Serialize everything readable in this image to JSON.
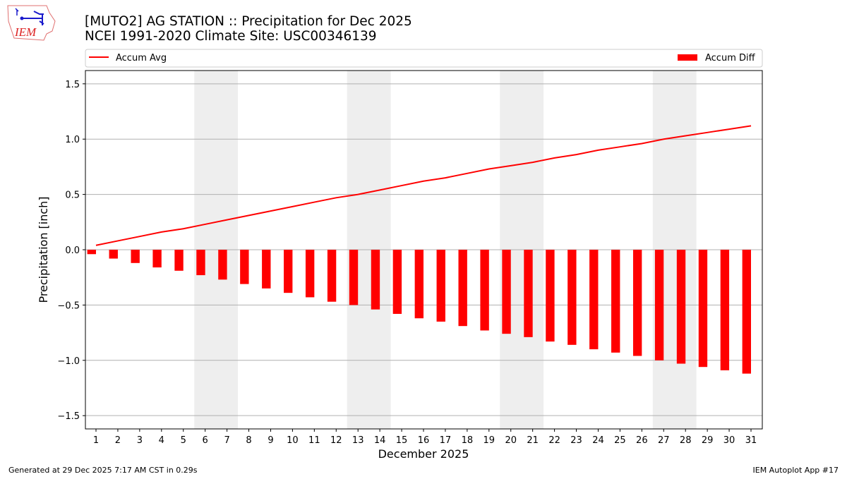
{
  "title_line1": "[MUTO2] AG STATION :: Precipitation for Dec 2025",
  "title_line2": "NCEI 1991-2020 Climate Site: USC00346139",
  "logo_text": "IEM",
  "footer_left": "Generated at 29 Dec 2025 7:17 AM CST in 0.29s",
  "footer_right": "IEM Autoplot App #17",
  "chart_data": {
    "type": "bar+line",
    "xlabel": "December 2025",
    "ylabel": "Precipitation [inch]",
    "ylim": [
      -1.62,
      1.62
    ],
    "yticks": [
      "1.5",
      "1.0",
      "0.5",
      "0.0",
      "−0.5",
      "−1.0",
      "−1.5"
    ],
    "ytick_values": [
      1.5,
      1.0,
      0.5,
      0.0,
      -0.5,
      -1.0,
      -1.5
    ],
    "grid": "horizontal",
    "legend_placement": "top (above plot)",
    "weekend_shading_days": [
      [
        6,
        7
      ],
      [
        13,
        14
      ],
      [
        20,
        21
      ],
      [
        27,
        28
      ]
    ],
    "x": [
      1,
      2,
      3,
      4,
      5,
      6,
      7,
      8,
      9,
      10,
      11,
      12,
      13,
      14,
      15,
      16,
      17,
      18,
      19,
      20,
      21,
      22,
      23,
      24,
      25,
      26,
      27,
      28,
      29,
      30,
      31
    ],
    "series": [
      {
        "name": "Accum Avg",
        "type": "line",
        "color": "#ff0000",
        "values": [
          0.04,
          0.08,
          0.12,
          0.16,
          0.19,
          0.23,
          0.27,
          0.31,
          0.35,
          0.39,
          0.43,
          0.47,
          0.5,
          0.54,
          0.58,
          0.62,
          0.65,
          0.69,
          0.73,
          0.76,
          0.79,
          0.83,
          0.86,
          0.9,
          0.93,
          0.96,
          1.0,
          1.03,
          1.06,
          1.09,
          1.12
        ]
      },
      {
        "name": "Accum Diff",
        "type": "bar",
        "color": "#ff0000",
        "values": [
          -0.04,
          -0.08,
          -0.12,
          -0.16,
          -0.19,
          -0.23,
          -0.27,
          -0.31,
          -0.35,
          -0.39,
          -0.43,
          -0.47,
          -0.5,
          -0.54,
          -0.58,
          -0.62,
          -0.65,
          -0.69,
          -0.73,
          -0.76,
          -0.79,
          -0.83,
          -0.86,
          -0.9,
          -0.93,
          -0.96,
          -1.0,
          -1.03,
          -1.06,
          -1.09,
          -1.12
        ]
      }
    ]
  }
}
